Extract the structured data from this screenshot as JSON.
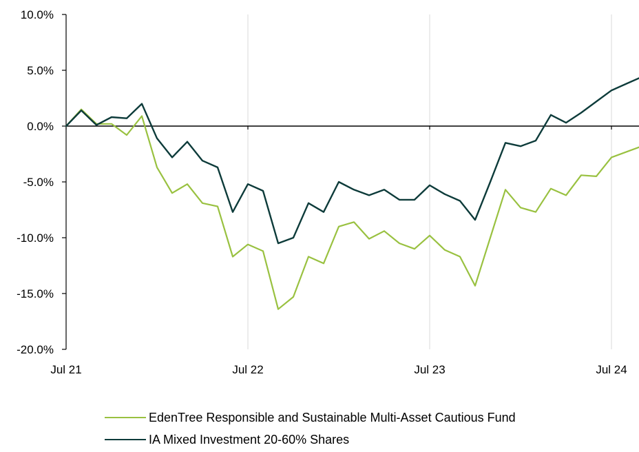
{
  "chart_data": {
    "type": "line",
    "title": "",
    "xlabel": "",
    "ylabel": "",
    "x_ticks": [
      "Jul 21",
      "Jul 22",
      "Jul 23",
      "Jul 24"
    ],
    "y_ticks": [
      "10.0%",
      "5.0%",
      "0.0%",
      "-5.0%",
      "-10.0%",
      "-15.0%",
      "-20.0%"
    ],
    "ylim": [
      -20,
      10
    ],
    "grid": "vertical",
    "legend_position": "bottom",
    "x": [
      "2021-07",
      "2021-08",
      "2021-09",
      "2021-10",
      "2021-11",
      "2021-12",
      "2022-01",
      "2022-02",
      "2022-03",
      "2022-04",
      "2022-05",
      "2022-06",
      "2022-07",
      "2022-08",
      "2022-09",
      "2022-10",
      "2022-11",
      "2022-12",
      "2023-01",
      "2023-02",
      "2023-03",
      "2023-04",
      "2023-05",
      "2023-06",
      "2023-07",
      "2023-08",
      "2023-09",
      "2023-10",
      "2023-11",
      "2023-12",
      "2024-01",
      "2024-02",
      "2024-03",
      "2024-04",
      "2024-05",
      "2024-06",
      "2024-07",
      "2024-08",
      "2024-09"
    ],
    "series": [
      {
        "name": "EdenTree Responsible and Sustainable Multi-Asset Cautious Fund",
        "color": "#99c140",
        "values": [
          0.0,
          1.5,
          0.2,
          0.2,
          -0.8,
          0.9,
          -3.7,
          -6.0,
          -5.2,
          -6.9,
          -7.2,
          -11.7,
          -10.6,
          -11.2,
          -16.4,
          -15.3,
          -11.7,
          -12.3,
          -9.0,
          -8.6,
          -10.1,
          -9.4,
          -10.5,
          -11.0,
          -9.8,
          -11.1,
          -11.7,
          -14.3,
          -10.0,
          -5.7,
          -7.3,
          -7.7,
          -5.6,
          -6.2,
          -4.4,
          -4.5,
          -2.8,
          -2.3,
          -1.8
        ]
      },
      {
        "name": "IA Mixed Investment 20-60% Shares",
        "color": "#0d3b3a",
        "values": [
          0.0,
          1.4,
          0.1,
          0.8,
          0.7,
          2.0,
          -1.1,
          -2.8,
          -1.4,
          -3.1,
          -3.7,
          -7.7,
          -5.2,
          -5.8,
          -10.5,
          -10.0,
          -6.9,
          -7.7,
          -5.0,
          -5.7,
          -6.2,
          -5.7,
          -6.6,
          -6.6,
          -5.3,
          -6.1,
          -6.7,
          -8.4,
          -5.0,
          -1.5,
          -1.8,
          -1.3,
          1.0,
          0.3,
          1.2,
          2.2,
          3.2,
          3.8,
          4.4
        ]
      }
    ]
  },
  "legend": {
    "items": [
      {
        "label": "EdenTree Responsible and Sustainable Multi-Asset Cautious Fund",
        "color": "#99c140"
      },
      {
        "label": "IA Mixed Investment 20-60% Shares",
        "color": "#0d3b3a"
      }
    ]
  }
}
